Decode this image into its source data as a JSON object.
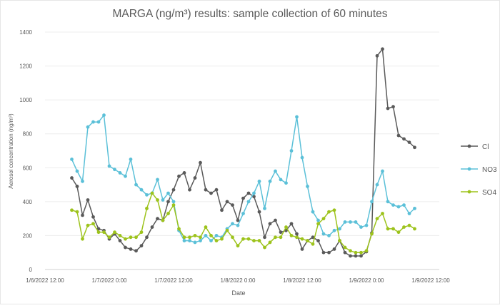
{
  "chart_data": {
    "type": "line",
    "title": "MARGA (ng/m³) results: sample collection of 60 minutes",
    "xlabel": "Date",
    "ylabel": "Aerosol concentration (ng/m³)",
    "ylim": [
      0,
      1400
    ],
    "yticks": [
      "0",
      "200",
      "400",
      "600",
      "800",
      "1000",
      "1200",
      "1400"
    ],
    "xlim": [
      "1/6/2022 12:00",
      "1/9/2022 12:00"
    ],
    "xticks": [
      "1/6/2022 12:00",
      "1/7/2022 0:00",
      "1/7/2022 12:00",
      "1/8/2022 0:00",
      "1/8/2022 12:00",
      "1/9/2022 0:00",
      "1/9/2022 12:00"
    ],
    "grid": "horizontal",
    "legend": "right",
    "x": [
      "1/6/2022 17:00",
      "1/6/2022 18:00",
      "1/6/2022 19:00",
      "1/6/2022 20:00",
      "1/6/2022 21:00",
      "1/6/2022 22:00",
      "1/6/2022 23:00",
      "1/7/2022 0:00",
      "1/7/2022 1:00",
      "1/7/2022 2:00",
      "1/7/2022 3:00",
      "1/7/2022 4:00",
      "1/7/2022 5:00",
      "1/7/2022 6:00",
      "1/7/2022 7:00",
      "1/7/2022 8:00",
      "1/7/2022 9:00",
      "1/7/2022 10:00",
      "1/7/2022 11:00",
      "1/7/2022 12:00",
      "1/7/2022 13:00",
      "1/7/2022 14:00",
      "1/7/2022 15:00",
      "1/7/2022 16:00",
      "1/7/2022 17:00",
      "1/7/2022 18:00",
      "1/7/2022 19:00",
      "1/7/2022 20:00",
      "1/7/2022 21:00",
      "1/7/2022 22:00",
      "1/7/2022 23:00",
      "1/8/2022 0:00",
      "1/8/2022 1:00",
      "1/8/2022 2:00",
      "1/8/2022 3:00",
      "1/8/2022 4:00",
      "1/8/2022 5:00",
      "1/8/2022 6:00",
      "1/8/2022 7:00",
      "1/8/2022 8:00",
      "1/8/2022 9:00",
      "1/8/2022 10:00",
      "1/8/2022 11:00",
      "1/8/2022 12:00",
      "1/8/2022 13:00",
      "1/8/2022 14:00",
      "1/8/2022 15:00",
      "1/8/2022 16:00",
      "1/8/2022 17:00",
      "1/8/2022 18:00",
      "1/8/2022 19:00",
      "1/8/2022 20:00",
      "1/8/2022 21:00",
      "1/8/2022 22:00",
      "1/8/2022 23:00",
      "1/9/2022 0:00",
      "1/9/2022 1:00",
      "1/9/2022 2:00",
      "1/9/2022 3:00",
      "1/9/2022 4:00",
      "1/9/2022 5:00",
      "1/9/2022 6:00",
      "1/9/2022 7:00",
      "1/9/2022 8:00",
      "1/9/2022 9:00"
    ],
    "series": [
      {
        "name": "Cl",
        "color": "#5a5a5a",
        "values": [
          540,
          490,
          320,
          410,
          310,
          240,
          230,
          180,
          210,
          170,
          130,
          120,
          110,
          140,
          190,
          250,
          300,
          290,
          400,
          470,
          550,
          570,
          470,
          540,
          630,
          470,
          450,
          470,
          350,
          400,
          380,
          290,
          420,
          450,
          430,
          340,
          190,
          270,
          290,
          220,
          230,
          270,
          210,
          120,
          170,
          190,
          170,
          100,
          100,
          120,
          170,
          100,
          80,
          80,
          80,
          105,
          215,
          1260,
          1300,
          950,
          960,
          790,
          770,
          750,
          720
        ]
      },
      {
        "name": "NO3",
        "color": "#5bc0d8",
        "values": [
          650,
          580,
          520,
          840,
          870,
          870,
          910,
          610,
          590,
          570,
          550,
          650,
          500,
          470,
          440,
          450,
          530,
          410,
          450,
          400,
          230,
          170,
          170,
          160,
          170,
          200,
          170,
          200,
          190,
          240,
          270,
          260,
          330,
          400,
          450,
          520,
          360,
          520,
          580,
          530,
          510,
          700,
          900,
          660,
          490,
          340,
          290,
          210,
          200,
          230,
          240,
          280,
          280,
          280,
          250,
          260,
          400,
          500,
          580,
          400,
          380,
          370,
          380,
          330,
          360
        ]
      },
      {
        "name": "SO4",
        "color": "#9dc31c",
        "values": [
          350,
          340,
          180,
          260,
          270,
          220,
          220,
          190,
          220,
          200,
          180,
          190,
          190,
          220,
          360,
          450,
          410,
          290,
          330,
          380,
          240,
          190,
          190,
          200,
          190,
          250,
          200,
          170,
          180,
          230,
          190,
          140,
          180,
          180,
          170,
          170,
          130,
          160,
          190,
          190,
          250,
          200,
          190,
          180,
          170,
          150,
          270,
          300,
          340,
          350,
          170,
          130,
          110,
          100,
          100,
          110,
          210,
          300,
          330,
          240,
          240,
          220,
          250,
          260,
          240
        ]
      }
    ]
  }
}
